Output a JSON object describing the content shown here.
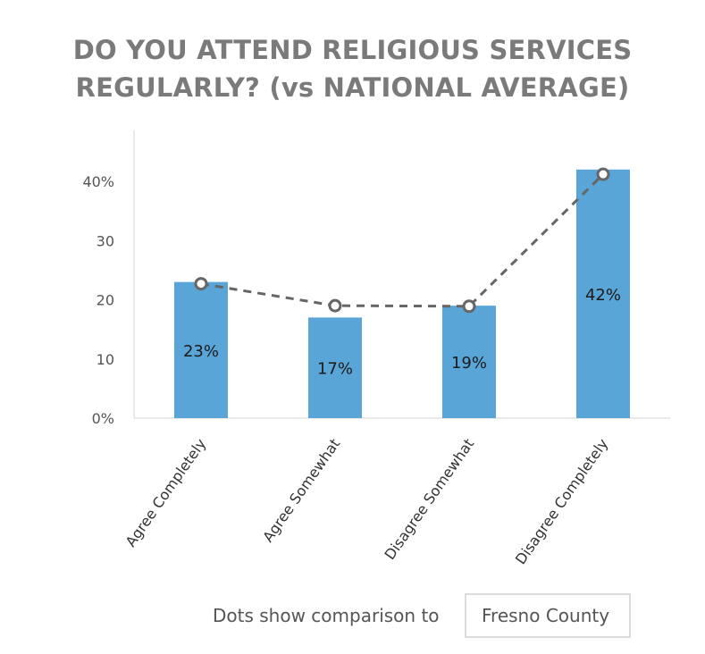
{
  "chart_data": {
    "type": "bar",
    "title_lines": [
      "DO YOU ATTEND RELIGIOUS SERVICES",
      "REGULARLY? (vs NATIONAL AVERAGE)"
    ],
    "categories": [
      "Agree Completely",
      "Agree Somewhat",
      "Disagree Somewhat",
      "Disagree Completely"
    ],
    "series": [
      {
        "values": [
          23,
          17,
          19,
          42
        ],
        "data_labels": [
          "23%",
          "17%",
          "19%",
          "42%"
        ],
        "color": "#5aa5d8"
      }
    ],
    "comparison": {
      "values": [
        22.7,
        19.0,
        18.9,
        41.2
      ],
      "style": "dashed line with hollow dots",
      "color": "#666666"
    },
    "y_ticks": [
      {
        "value": 0,
        "label": "0%"
      },
      {
        "value": 10,
        "label": "10"
      },
      {
        "value": 20,
        "label": "20"
      },
      {
        "value": 30,
        "label": "30"
      },
      {
        "value": 40,
        "label": "40%"
      }
    ],
    "ylim": [
      0,
      48
    ],
    "grid": false
  },
  "footer": {
    "comparison_label": "Dots show comparison to",
    "comparison_value": "Fresno County"
  }
}
